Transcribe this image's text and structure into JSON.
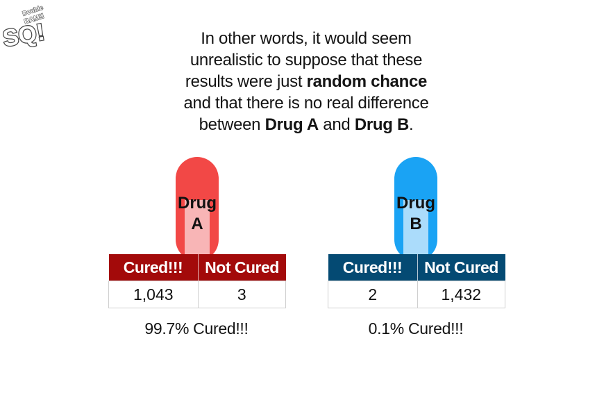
{
  "logo": {
    "lines": [
      "Double",
      "BAM!!",
      "SQ!"
    ]
  },
  "caption": {
    "t1": "In other words, it would seem unrealistic to suppose that these results were just ",
    "b1": "random chance",
    "t2": " and that there is no real difference between ",
    "b2": "Drug A",
    "t3": " and ",
    "b3": "Drug B",
    "t4": "."
  },
  "drug_a": {
    "pill_word": "Drug",
    "pill_letter": "A",
    "col_cured": "Cured!!!",
    "col_not_cured": "Not Cured",
    "cured_value": "1,043",
    "not_cured_value": "3",
    "summary": "99.7% Cured!!!",
    "color": "#f24846",
    "header_color": "#a30a0a"
  },
  "drug_b": {
    "pill_word": "Drug",
    "pill_letter": "B",
    "col_cured": "Cured!!!",
    "col_not_cured": "Not Cured",
    "cured_value": "2",
    "not_cured_value": "1,432",
    "summary": "0.1% Cured!!!",
    "color": "#1aa3f4",
    "header_color": "#044a73"
  }
}
